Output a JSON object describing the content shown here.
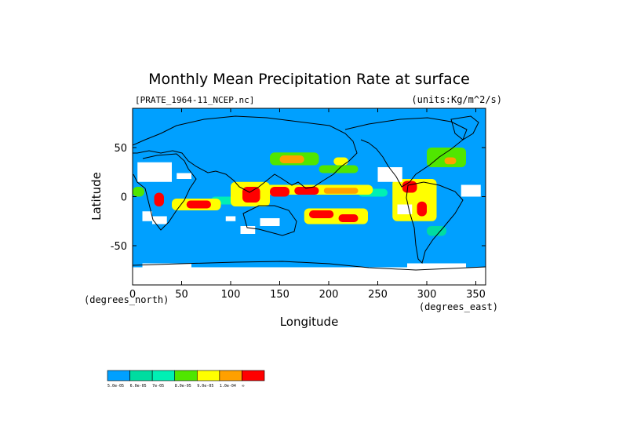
{
  "chart_data": {
    "type": "heatmap",
    "title": "Monthly Mean Precipitation Rate at surface",
    "file_label": "[PRATE_1964-11_NCEP.nc]",
    "units_label": "(units:Kg/m^2/s)",
    "xlabel": "Longitude",
    "ylabel": "Latitude",
    "x_unit_label": "(degrees_east)",
    "y_unit_label": "(degrees_north)",
    "xlim": [
      0,
      360
    ],
    "ylim": [
      -90,
      90
    ],
    "x_ticks": [
      0,
      50,
      100,
      150,
      200,
      250,
      300,
      350
    ],
    "y_ticks": [
      50,
      0,
      -50
    ],
    "x_tick_labels": [
      "0",
      "50",
      "100",
      "150",
      "200",
      "250",
      "300",
      "350"
    ],
    "y_tick_labels": [
      "50",
      "0",
      "-50"
    ],
    "background_color": "#00a0ff",
    "missing_color": "#ffffff",
    "colorbar": {
      "colors": [
        "#00a0ff",
        "#00dca0",
        "#00f0b4",
        "#50e600",
        "#ffff00",
        "#ffa000",
        "#ff0000"
      ],
      "labels": [
        "5.0e-05",
        "6.0e-05",
        "7e-05",
        "8.0e-05",
        "9.0e-05",
        "1.0e-04",
        "∞"
      ]
    },
    "regions": [
      {
        "level": 6,
        "lon": [
          112,
          130
        ],
        "lat": [
          -6,
          10
        ]
      },
      {
        "level": 6,
        "lon": [
          140,
          160
        ],
        "lat": [
          0,
          10
        ]
      },
      {
        "level": 6,
        "lon": [
          165,
          190
        ],
        "lat": [
          2,
          10
        ]
      },
      {
        "level": 6,
        "lon": [
          275,
          290
        ],
        "lat": [
          4,
          16
        ]
      },
      {
        "level": 6,
        "lon": [
          55,
          80
        ],
        "lat": [
          -12,
          -4
        ]
      },
      {
        "level": 6,
        "lon": [
          180,
          205
        ],
        "lat": [
          -22,
          -14
        ]
      },
      {
        "level": 6,
        "lon": [
          210,
          230
        ],
        "lat": [
          -26,
          -18
        ]
      },
      {
        "level": 6,
        "lon": [
          290,
          300
        ],
        "lat": [
          -20,
          -5
        ]
      },
      {
        "level": 6,
        "lon": [
          22,
          32
        ],
        "lat": [
          -10,
          4
        ]
      },
      {
        "level": 5,
        "lon": [
          150,
          175
        ],
        "lat": [
          34,
          42
        ]
      },
      {
        "level": 5,
        "lon": [
          318,
          330
        ],
        "lat": [
          33,
          40
        ]
      },
      {
        "level": 5,
        "lon": [
          195,
          230
        ],
        "lat": [
          3,
          9
        ]
      },
      {
        "level": 4,
        "lon": [
          100,
          140
        ],
        "lat": [
          -10,
          15
        ]
      },
      {
        "level": 4,
        "lon": [
          135,
          245
        ],
        "lat": [
          2,
          12
        ]
      },
      {
        "level": 4,
        "lon": [
          175,
          240
        ],
        "lat": [
          -28,
          -12
        ]
      },
      {
        "level": 4,
        "lon": [
          265,
          310
        ],
        "lat": [
          -25,
          18
        ]
      },
      {
        "level": 4,
        "lon": [
          40,
          90
        ],
        "lat": [
          -14,
          -2
        ]
      },
      {
        "level": 4,
        "lon": [
          205,
          220
        ],
        "lat": [
          32,
          40
        ]
      },
      {
        "level": 3,
        "lon": [
          0,
          12
        ],
        "lat": [
          0,
          10
        ]
      },
      {
        "level": 3,
        "lon": [
          140,
          190
        ],
        "lat": [
          32,
          45
        ]
      },
      {
        "level": 3,
        "lon": [
          190,
          230
        ],
        "lat": [
          24,
          32
        ]
      },
      {
        "level": 3,
        "lon": [
          300,
          340
        ],
        "lat": [
          30,
          50
        ]
      },
      {
        "level": 2,
        "lon": [
          80,
          110
        ],
        "lat": [
          -8,
          0
        ]
      },
      {
        "level": 2,
        "lon": [
          230,
          260
        ],
        "lat": [
          0,
          8
        ]
      },
      {
        "level": 1,
        "lon": [
          300,
          320
        ],
        "lat": [
          -40,
          -30
        ]
      }
    ],
    "missing_patches": [
      {
        "lon": [
          5,
          40
        ],
        "lat": [
          15,
          35
        ]
      },
      {
        "lon": [
          45,
          60
        ],
        "lat": [
          18,
          24
        ]
      },
      {
        "lon": [
          250,
          275
        ],
        "lat": [
          15,
          30
        ]
      },
      {
        "lon": [
          10,
          20
        ],
        "lat": [
          -25,
          -15
        ]
      },
      {
        "lon": [
          20,
          35
        ],
        "lat": [
          -28,
          -20
        ]
      },
      {
        "lon": [
          95,
          105
        ],
        "lat": [
          -25,
          -20
        ]
      },
      {
        "lon": [
          130,
          150
        ],
        "lat": [
          -30,
          -22
        ]
      },
      {
        "lon": [
          110,
          125
        ],
        "lat": [
          -38,
          -30
        ]
      },
      {
        "lon": [
          270,
          285
        ],
        "lat": [
          -18,
          -8
        ]
      },
      {
        "lon": [
          335,
          355
        ],
        "lat": [
          0,
          12
        ]
      },
      {
        "lon": [
          0,
          360
        ],
        "lat": [
          -90,
          -72
        ]
      },
      {
        "lon": [
          10,
          60
        ],
        "lat": [
          -72,
          -68
        ]
      },
      {
        "lon": [
          280,
          340
        ],
        "lat": [
          -72,
          -68
        ]
      }
    ]
  }
}
